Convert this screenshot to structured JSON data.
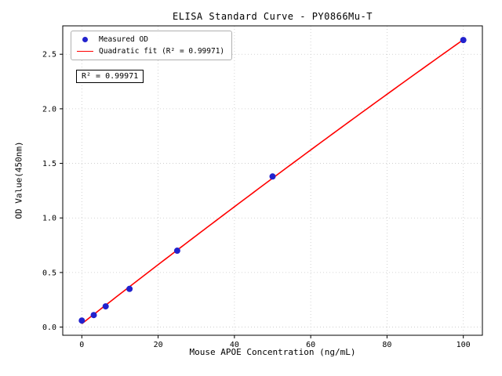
{
  "chart_data": {
    "type": "scatter",
    "title": "ELISA Standard Curve - PY0866Mu-T",
    "xlabel": "Mouse APOE Concentration (ng/mL)",
    "ylabel": "OD Value(450nm)",
    "x": [
      0,
      3.125,
      6.25,
      12.5,
      25,
      50,
      100
    ],
    "y": [
      0.06,
      0.11,
      0.19,
      0.35,
      0.7,
      1.38,
      2.63
    ],
    "fit": {
      "type": "quadratic",
      "label": "Quadratic fit (R² = 0.99971)",
      "r_squared": 0.99971
    },
    "legend": [
      "Measured OD",
      "Quadratic fit (R² = 0.99971)"
    ],
    "legend_position": "upper left",
    "annotation": "R² = 0.99971",
    "xlim": [
      -5,
      105
    ],
    "ylim": [
      -0.075,
      2.76
    ],
    "xticks": [
      0,
      20,
      40,
      60,
      80,
      100
    ],
    "yticks": [
      0.0,
      0.5,
      1.0,
      1.5,
      2.0,
      2.5
    ],
    "grid": true,
    "colors": {
      "points": "#2222cd",
      "line": "#ff0000",
      "grid": "#c8c8c8",
      "spine": "#000000"
    }
  }
}
